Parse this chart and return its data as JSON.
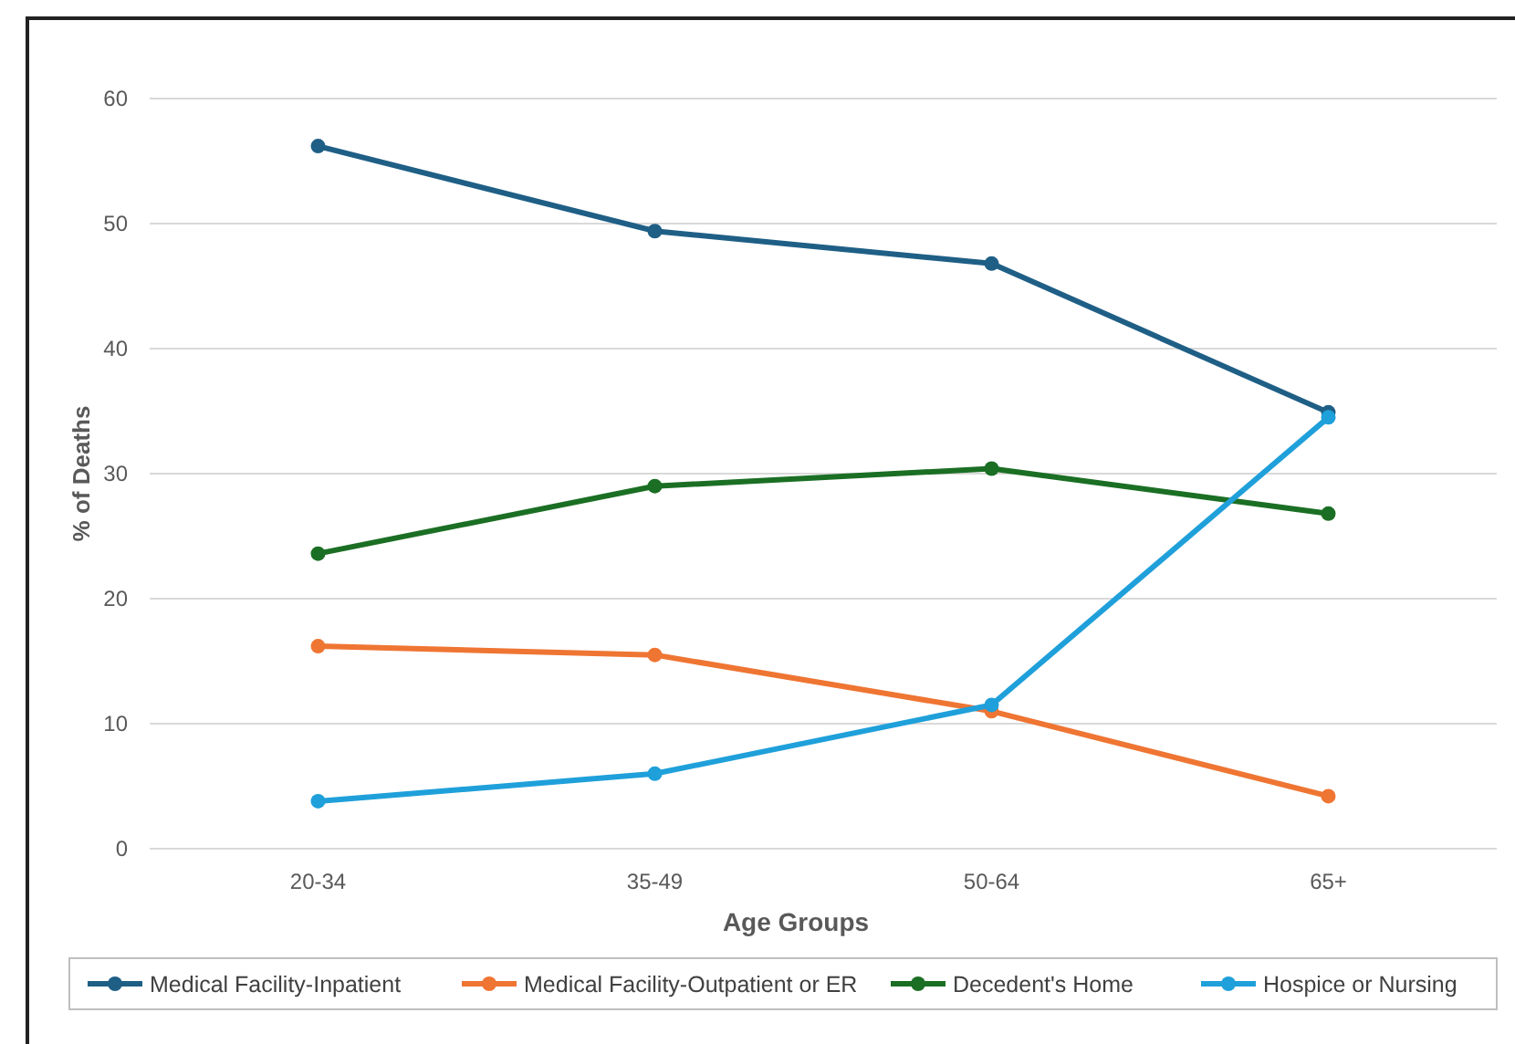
{
  "chart_data": {
    "type": "line",
    "xlabel": "Age Groups",
    "ylabel": "% of Deaths",
    "categories": [
      "20-34",
      "35-49",
      "50-64",
      "65+"
    ],
    "series": [
      {
        "name": "Medical Facility-Inpatient",
        "color": "#1f5f86",
        "values": [
          56.2,
          49.4,
          46.8,
          34.9
        ]
      },
      {
        "name": "Medical Facility-Outpatient or ER",
        "color": "#ef7533",
        "values": [
          16.2,
          15.5,
          11.0,
          4.2
        ]
      },
      {
        "name": "Decedent's Home",
        "color": "#1b6f24",
        "values": [
          23.6,
          29.0,
          30.4,
          26.8
        ]
      },
      {
        "name": "Hospice or Nursing",
        "color": "#1fa0da",
        "values": [
          3.8,
          6.0,
          11.5,
          34.5
        ]
      }
    ],
    "ylim": [
      0,
      60
    ],
    "yticks": [
      0,
      10,
      20,
      30,
      40,
      50,
      60
    ],
    "grid": "y",
    "legend": "bottom",
    "marker": "circle",
    "line_style": "solid"
  }
}
